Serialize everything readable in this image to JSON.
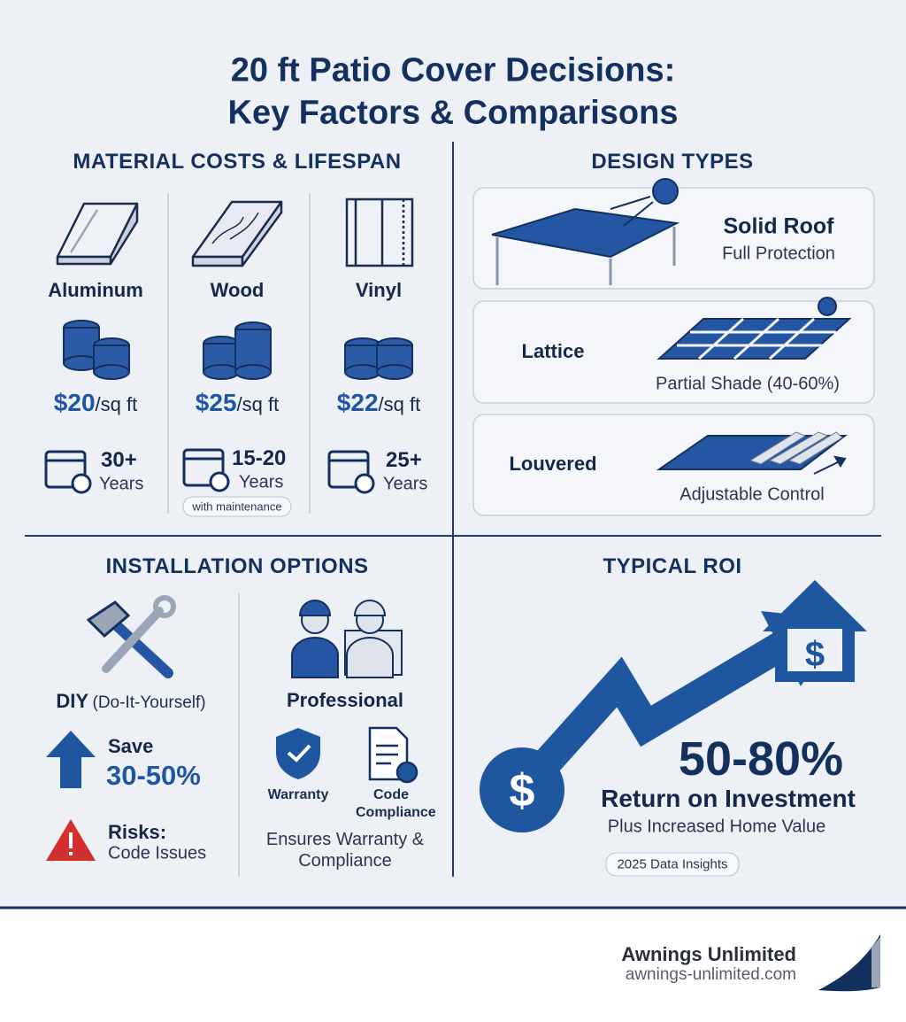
{
  "header": {
    "title_line1": "20 ft Patio Cover Decisions:",
    "title_line2": "Key Factors & Comparisons"
  },
  "materials": {
    "heading": "MATERIAL COSTS & LIFESPAN",
    "items": [
      {
        "name": "Aluminum",
        "price": "$20",
        "unit": "/sq ft",
        "lifespan": "30+",
        "lifespan_unit": "Years"
      },
      {
        "name": "Wood",
        "price": "$25",
        "unit": "/sq ft",
        "lifespan": "15-20",
        "lifespan_unit": "Years",
        "note": "with maintenance"
      },
      {
        "name": "Vinyl",
        "price": "$22",
        "unit": "/sq ft",
        "lifespan": "25+",
        "lifespan_unit": "Years"
      }
    ]
  },
  "design": {
    "heading": "DESIGN TYPES",
    "items": [
      {
        "name": "Solid Roof",
        "desc": "Full Protection"
      },
      {
        "name": "Lattice",
        "desc": "Partial Shade (40-60%)"
      },
      {
        "name": "Louvered",
        "desc": "Adjustable Control"
      }
    ]
  },
  "installation": {
    "heading": "INSTALLATION OPTIONS",
    "diy": {
      "title": "DIY",
      "subtitle": "(Do-It-Yourself)",
      "save_label": "Save",
      "save_value": "30-50%",
      "risk_label": "Risks:",
      "risk_text": "Code Issues"
    },
    "professional": {
      "title": "Professional",
      "badges": [
        "Warranty",
        "Code Compliance"
      ],
      "note": "Ensures Warranty & Compliance"
    }
  },
  "roi": {
    "heading": "TYPICAL ROI",
    "value": "50-80%",
    "label": "Return on Investment",
    "sub": "Plus Increased Home Value",
    "badge": "2025 Data Insights"
  },
  "footer": {
    "brand": "Awnings Unlimited",
    "url": "awnings-unlimited.com"
  }
}
